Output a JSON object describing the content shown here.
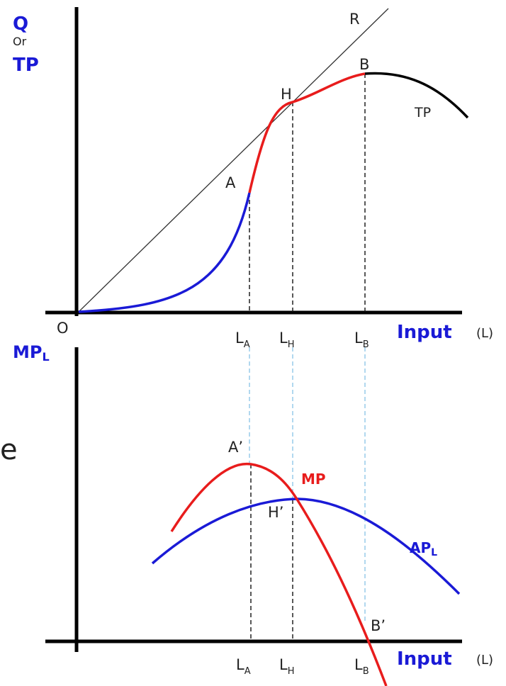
{
  "colors": {
    "blue": "#1a1ad6",
    "red": "#e81c1c",
    "black": "#000000",
    "text": "#222222",
    "guide": "#87c4e6",
    "dark_red": "#6a1a2a"
  },
  "top_panel": {
    "y_axis_label_q": "Q",
    "y_axis_label_or": "Or",
    "y_axis_label_tp": "TP",
    "origin_label": "O",
    "ray_label": "R",
    "point_a": "A",
    "point_h": "H",
    "point_b": "B",
    "curve_label_tp": "TP",
    "x_axis_label": "Input",
    "x_axis_unit": "(L)",
    "x_ticks": [
      {
        "base": "L",
        "sub": "A"
      },
      {
        "base": "L",
        "sub": "H"
      },
      {
        "base": "L",
        "sub": "B"
      }
    ]
  },
  "bottom_panel": {
    "y_axis_label_base": "MP",
    "y_axis_label_sub": "L",
    "point_a_prime": "A’",
    "point_h_prime": "H’",
    "point_b_prime": "B’",
    "curve_label_mp": "MP",
    "curve_label_ap_base": "AP",
    "curve_label_ap_sub": "L",
    "x_axis_label": "Input",
    "x_axis_unit": "(L)",
    "x_ticks": [
      {
        "base": "L",
        "sub": "A"
      },
      {
        "base": "L",
        "sub": "H"
      },
      {
        "base": "L",
        "sub": "B"
      }
    ]
  },
  "edge_glyph": "e"
}
